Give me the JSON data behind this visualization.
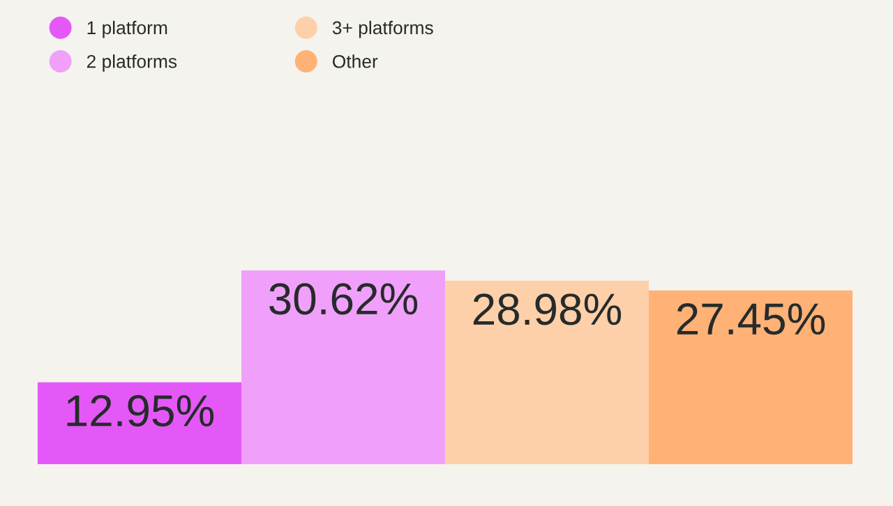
{
  "chart_data": {
    "type": "bar",
    "categories": [
      null,
      null,
      null,
      null
    ],
    "series": [
      {
        "name": "1 platform",
        "color": "#e558f8",
        "values": [
          12.95,
          null,
          null,
          null
        ],
        "value_labels": [
          "12.95%",
          null,
          null,
          null
        ]
      },
      {
        "name": "2 platforms",
        "color": "#f0a0fa",
        "values": [
          null,
          30.62,
          null,
          null
        ],
        "value_labels": [
          null,
          "30.62%",
          null,
          null
        ]
      },
      {
        "name": "3+ platforms",
        "color": "#fdd0aa",
        "values": [
          null,
          null,
          28.98,
          null
        ],
        "value_labels": [
          null,
          null,
          "28.98%",
          null
        ]
      },
      {
        "name": "Other",
        "color": "#ffb176",
        "values": [
          null,
          null,
          null,
          27.45
        ],
        "value_labels": [
          null,
          null,
          null,
          "27.45%"
        ]
      }
    ],
    "stacked": true,
    "legend": "top left",
    "tick_labels": false
  }
}
